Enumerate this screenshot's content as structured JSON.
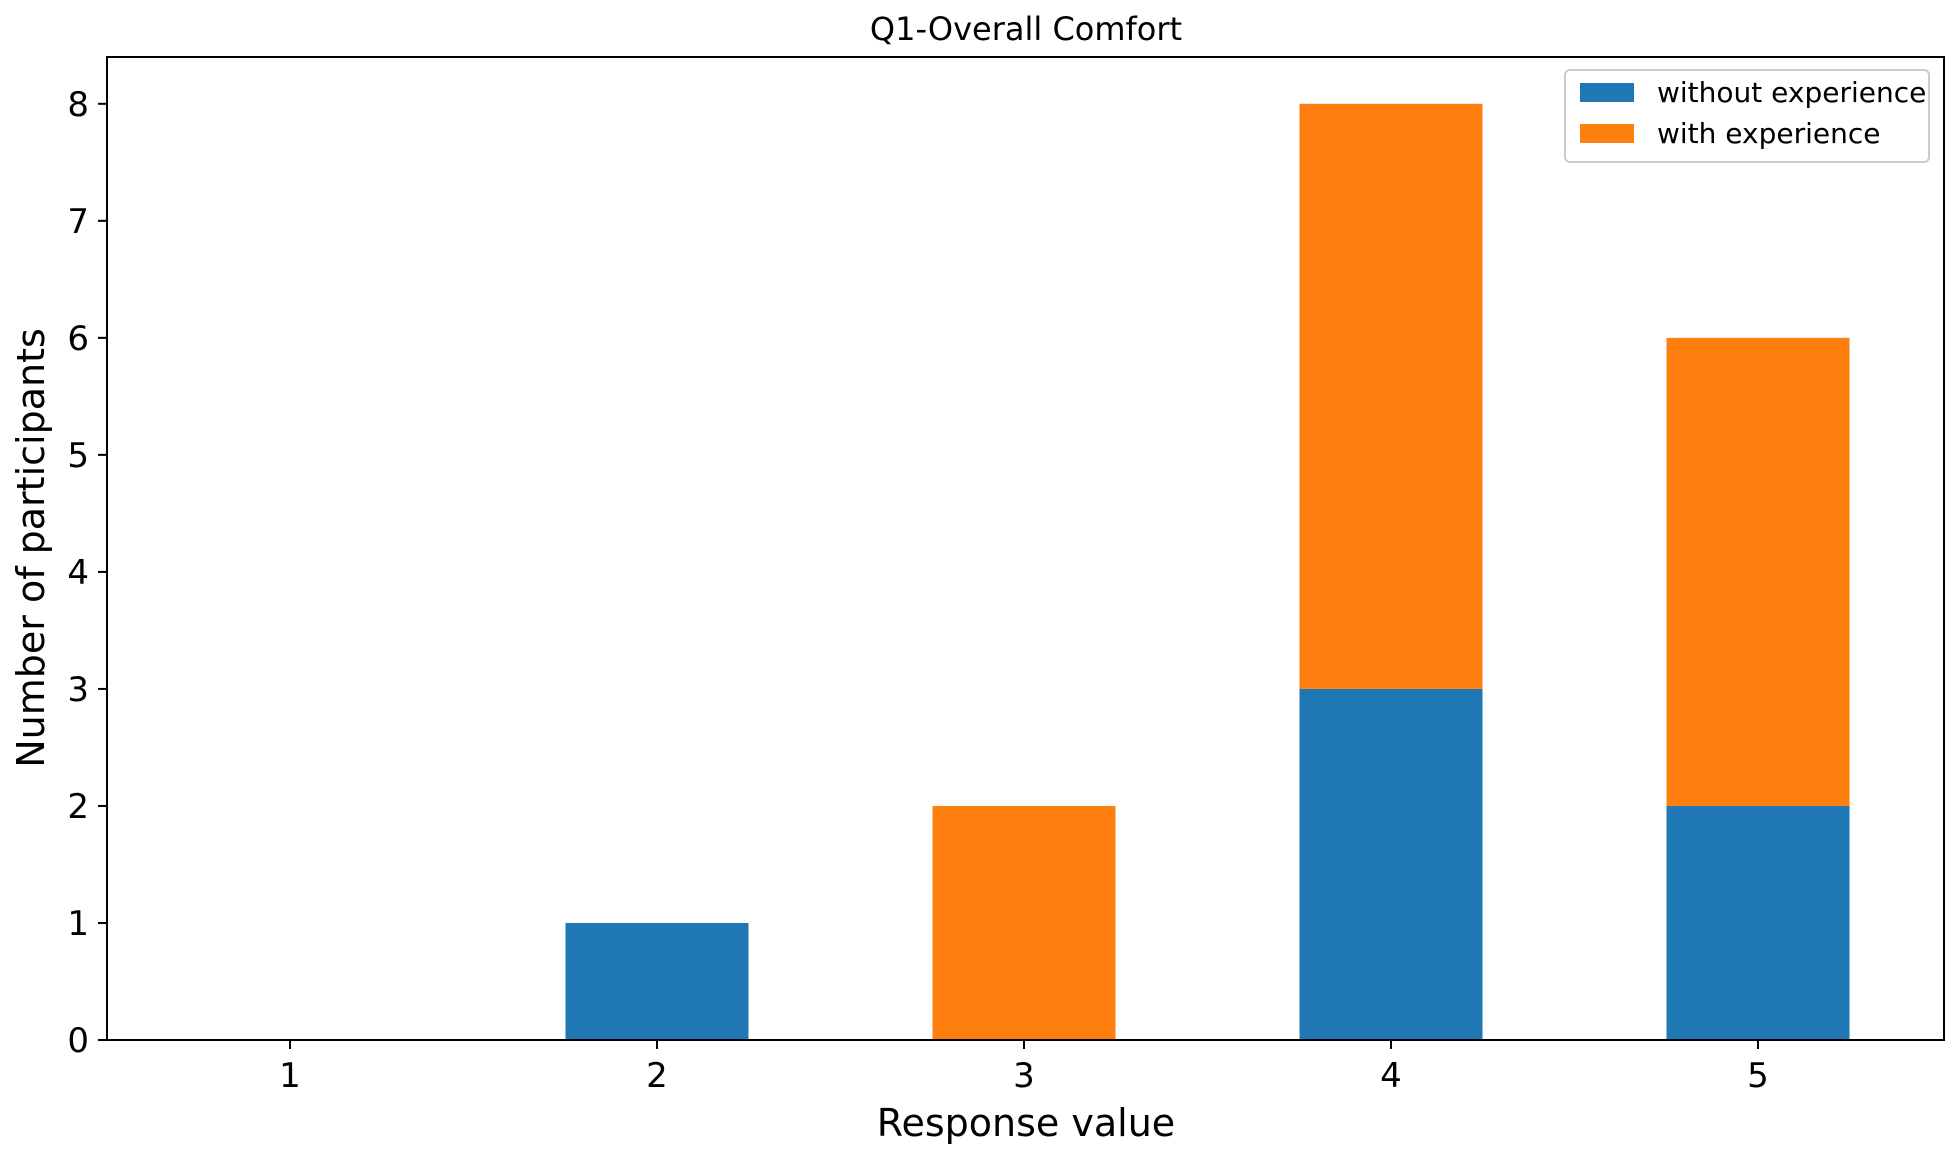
{
  "chart_data": {
    "type": "bar",
    "stacked": true,
    "title": "Q1-Overall Comfort",
    "xlabel": "Response value",
    "ylabel": "Number of participants",
    "categories": [
      "1",
      "2",
      "3",
      "4",
      "5"
    ],
    "series": [
      {
        "name": "without experience",
        "color": "#1f77b4",
        "values": [
          0,
          1,
          0,
          3,
          2
        ]
      },
      {
        "name": "with experience",
        "color": "#ff7f0e",
        "values": [
          0,
          0,
          2,
          5,
          4
        ]
      }
    ],
    "yticks": [
      "0",
      "1",
      "2",
      "3",
      "4",
      "5",
      "6",
      "7",
      "8"
    ],
    "ylim": [
      0,
      8.4
    ],
    "grid": false,
    "legend_position": "top-right"
  }
}
